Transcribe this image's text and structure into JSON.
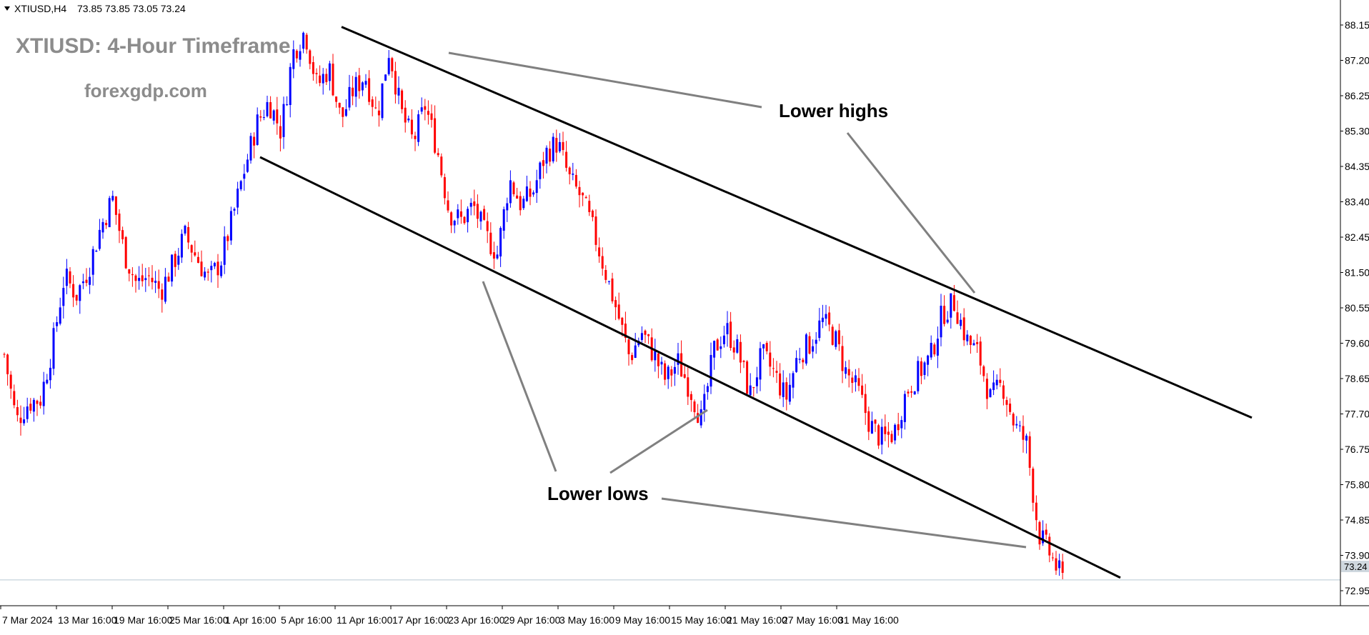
{
  "header": {
    "symbol": "XTIUSD,H4",
    "ohlc": "73.85 73.85 73.05 73.24",
    "title": "XTIUSD: 4-Hour Timeframe",
    "website": "forexgdp.com"
  },
  "annotations": {
    "lower_highs": "Lower highs",
    "lower_lows": "Lower lows"
  },
  "colors": {
    "bull": "#0000ff",
    "bear": "#ff0000",
    "channel": "#000000",
    "annotation_line": "#808080",
    "grid_border": "#000000",
    "current_price_line": "#b8c7d2"
  },
  "chart_data": {
    "type": "candlestick",
    "symbol": "XTIUSD",
    "timeframe": "H4",
    "ylim": [
      72.95,
      88.15
    ],
    "y_ticks": [
      "88.15",
      "87.20",
      "86.25",
      "85.30",
      "84.35",
      "83.40",
      "82.45",
      "81.50",
      "80.55",
      "79.60",
      "78.65",
      "77.70",
      "76.75",
      "75.80",
      "74.85",
      "73.90",
      "72.95"
    ],
    "x_ticks": [
      "7 Mar 2024",
      "13 Mar 16:00",
      "19 Mar 16:00",
      "25 Mar 16:00",
      "1 Apr 16:00",
      "5 Apr 16:00",
      "11 Apr 16:00",
      "17 Apr 16:00",
      "23 Apr 16:00",
      "29 Apr 16:00",
      "3 May 16:00",
      "9 May 16:00",
      "15 May 16:00",
      "21 May 16:00",
      "27 May 16:00",
      "31 May 16:00"
    ],
    "current_price": "73.24",
    "grid": false,
    "channel": {
      "upper_line": {
        "start_price": 88.1,
        "end_price": 77.6
      },
      "lower_line": {
        "start_price": 84.6,
        "end_price": 73.3
      }
    },
    "price_path": [
      {
        "price": 79.3
      },
      {
        "price": 77.5
      },
      {
        "price": 78.0
      },
      {
        "price": 78.1
      },
      {
        "price": 79.5
      },
      {
        "price": 81.4
      },
      {
        "price": 80.9
      },
      {
        "price": 81.6
      },
      {
        "price": 82.7
      },
      {
        "price": 83.5
      },
      {
        "price": 82.0
      },
      {
        "price": 81.2
      },
      {
        "price": 81.4
      },
      {
        "price": 81.0
      },
      {
        "price": 81.7
      },
      {
        "price": 82.5
      },
      {
        "price": 81.9
      },
      {
        "price": 81.3
      },
      {
        "price": 81.8
      },
      {
        "price": 83.0
      },
      {
        "price": 84.3
      },
      {
        "price": 85.5
      },
      {
        "price": 86.1
      },
      {
        "price": 85.3
      },
      {
        "price": 87.4
      },
      {
        "price": 88.0
      },
      {
        "price": 86.5
      },
      {
        "price": 87.0
      },
      {
        "price": 85.6
      },
      {
        "price": 86.4
      },
      {
        "price": 86.8
      },
      {
        "price": 85.7
      },
      {
        "price": 87.5
      },
      {
        "price": 85.8
      },
      {
        "price": 85.0
      },
      {
        "price": 86.0
      },
      {
        "price": 84.8
      },
      {
        "price": 83.1
      },
      {
        "price": 82.9
      },
      {
        "price": 83.3
      },
      {
        "price": 82.5
      },
      {
        "price": 82.0
      },
      {
        "price": 84.0
      },
      {
        "price": 83.3
      },
      {
        "price": 83.7
      },
      {
        "price": 84.7
      },
      {
        "price": 85.0
      },
      {
        "price": 84.0
      },
      {
        "price": 83.5
      },
      {
        "price": 82.6
      },
      {
        "price": 81.5
      },
      {
        "price": 80.4
      },
      {
        "price": 79.2
      },
      {
        "price": 79.9
      },
      {
        "price": 79.3
      },
      {
        "price": 78.6
      },
      {
        "price": 79.1
      },
      {
        "price": 78.4
      },
      {
        "price": 77.5
      },
      {
        "price": 79.4
      },
      {
        "price": 80.0
      },
      {
        "price": 79.4
      },
      {
        "price": 78.2
      },
      {
        "price": 79.3
      },
      {
        "price": 78.8
      },
      {
        "price": 78.1
      },
      {
        "price": 79.3
      },
      {
        "price": 79.6
      },
      {
        "price": 80.2
      },
      {
        "price": 79.8
      },
      {
        "price": 78.8
      },
      {
        "price": 78.3
      },
      {
        "price": 77.4
      },
      {
        "price": 77.0
      },
      {
        "price": 77.2
      },
      {
        "price": 78.3
      },
      {
        "price": 78.8
      },
      {
        "price": 79.2
      },
      {
        "price": 80.4
      },
      {
        "price": 80.7
      },
      {
        "price": 79.7
      },
      {
        "price": 79.3
      },
      {
        "price": 78.1
      },
      {
        "price": 78.5
      },
      {
        "price": 77.4
      },
      {
        "price": 76.9
      },
      {
        "price": 74.5
      },
      {
        "price": 73.9
      },
      {
        "price": 73.24
      }
    ]
  }
}
